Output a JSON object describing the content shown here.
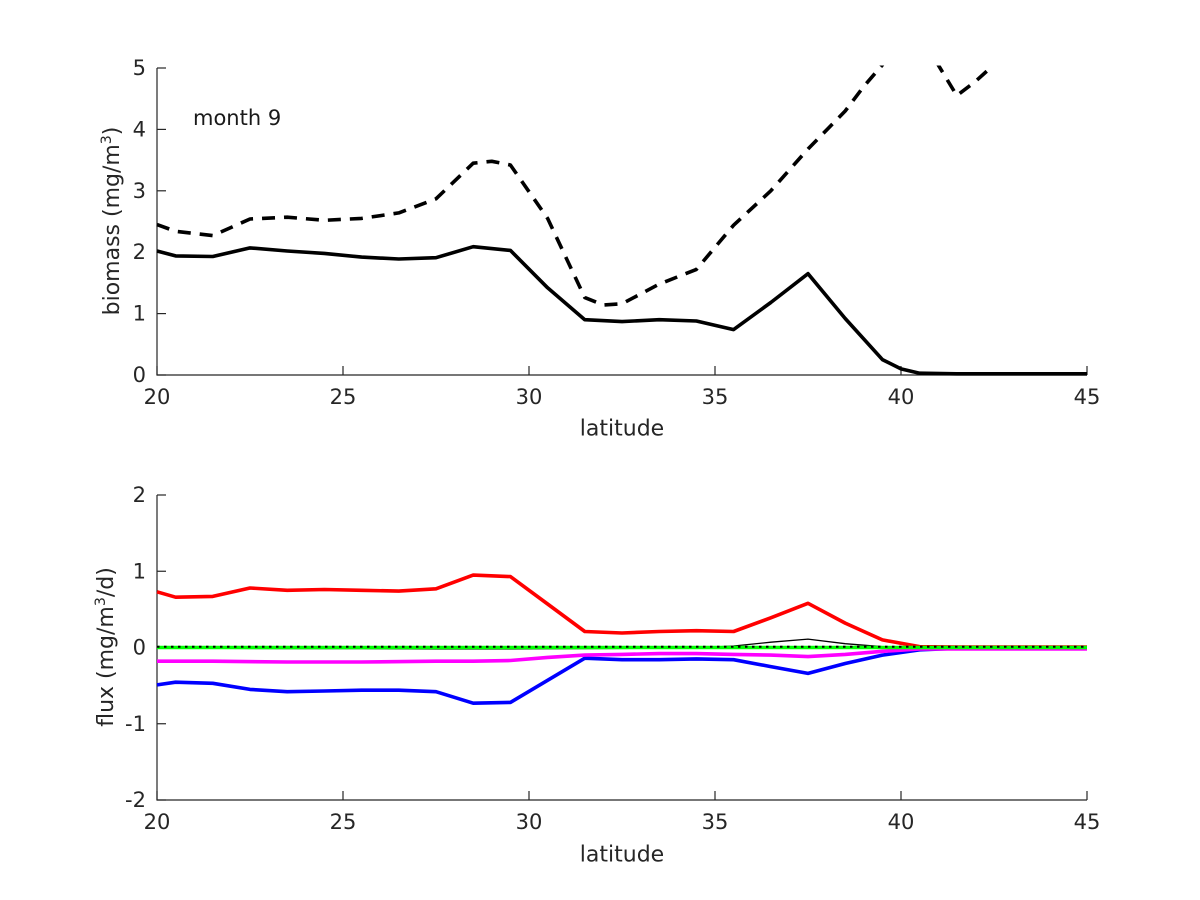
{
  "style": {
    "background": "#ffffff",
    "axis_color": "#262626",
    "tick_label_color": "#262626",
    "tick_font_size": 21
  },
  "chart_data": [
    {
      "type": "line",
      "title": "",
      "xlabel": "latitude",
      "ylabel": "biomass (mg/m^3)",
      "ylabel_parts": {
        "prefix": "biomass (mg/m",
        "sup": "3",
        "suffix": ")"
      },
      "annotation": {
        "text": "month 9",
        "x": 21,
        "y": 4.2
      },
      "xlim": [
        20,
        45
      ],
      "ylim": [
        0,
        5
      ],
      "xticks": [
        20,
        25,
        30,
        35,
        40,
        45
      ],
      "yticks": [
        0,
        1,
        2,
        3,
        4,
        5
      ],
      "grid": false,
      "legend": "none",
      "series": [
        {
          "name": "solid-black-biomass",
          "color": "#000000",
          "width": 3.6,
          "dash": null,
          "x": [
            20,
            20.5,
            21.5,
            22.5,
            23.5,
            24.5,
            25.5,
            26.5,
            27.5,
            28.5,
            29.5,
            30.5,
            31.5,
            32.5,
            33.5,
            34.5,
            35.5,
            36.5,
            37.5,
            38.5,
            39.5,
            40,
            40.5,
            41.5,
            42.5,
            43.5,
            44.5,
            45
          ],
          "y": [
            2.02,
            1.94,
            1.93,
            2.07,
            2.02,
            1.98,
            1.92,
            1.89,
            1.91,
            2.09,
            2.03,
            1.42,
            0.9,
            0.87,
            0.9,
            0.88,
            0.74,
            1.18,
            1.65,
            0.92,
            0.25,
            0.1,
            0.03,
            0.02,
            0.02,
            0.02,
            0.02,
            0.02
          ]
        },
        {
          "name": "dashed-black-biomass",
          "color": "#000000",
          "width": 3.6,
          "dash": "13 9",
          "x": [
            20,
            20.5,
            21.5,
            22.5,
            23.5,
            24.5,
            25.5,
            26.5,
            27.5,
            28.5,
            29,
            29.5,
            30.5,
            31.5,
            32,
            32.5,
            33.5,
            34.5,
            35.5,
            36.5,
            37.5,
            38.5,
            39,
            39.5,
            40,
            40.5,
            41,
            41.5,
            42,
            42.4,
            42.8
          ],
          "y": [
            2.45,
            2.34,
            2.27,
            2.54,
            2.57,
            2.52,
            2.55,
            2.64,
            2.87,
            3.45,
            3.48,
            3.42,
            2.55,
            1.26,
            1.14,
            1.16,
            1.48,
            1.72,
            2.44,
            3.0,
            3.68,
            4.3,
            4.7,
            5.05,
            5.45,
            5.6,
            5.05,
            4.55,
            4.78,
            5.0,
            5.5
          ]
        }
      ]
    },
    {
      "type": "line",
      "title": "",
      "xlabel": "latitude",
      "ylabel": "flux (mg/m^3/d)",
      "ylabel_parts": {
        "prefix": "flux (mg/m",
        "sup": "3",
        "suffix": "/d)"
      },
      "xlim": [
        20,
        45
      ],
      "ylim": [
        -2,
        2
      ],
      "xticks": [
        20,
        25,
        30,
        35,
        40,
        45
      ],
      "yticks": [
        -2,
        -1,
        0,
        1,
        2
      ],
      "grid": false,
      "legend": "none",
      "series": [
        {
          "name": "red-flux",
          "color": "#ff0000",
          "width": 3.6,
          "dash": null,
          "x": [
            20,
            20.5,
            21.5,
            22.5,
            23.5,
            24.5,
            25.5,
            26.5,
            27.5,
            28.5,
            29.5,
            30.5,
            31.5,
            32.5,
            33.5,
            34.5,
            35.5,
            36.5,
            37.5,
            38.5,
            39.5,
            40.5,
            41.5,
            45
          ],
          "y": [
            0.73,
            0.66,
            0.67,
            0.78,
            0.75,
            0.76,
            0.75,
            0.74,
            0.77,
            0.95,
            0.93,
            0.57,
            0.21,
            0.19,
            0.21,
            0.22,
            0.21,
            0.39,
            0.58,
            0.32,
            0.1,
            0.01,
            0.005,
            0.005
          ]
        },
        {
          "name": "blue-flux",
          "color": "#0000ff",
          "width": 3.6,
          "dash": null,
          "x": [
            20,
            20.5,
            21.5,
            22.5,
            23.5,
            24.5,
            25.5,
            26.5,
            27.5,
            28.5,
            29.5,
            30.5,
            31.5,
            32.5,
            33.5,
            34.5,
            35.5,
            36.5,
            37.5,
            38.5,
            39.5,
            40.5,
            41.5,
            45
          ],
          "y": [
            -0.49,
            -0.455,
            -0.47,
            -0.55,
            -0.58,
            -0.57,
            -0.56,
            -0.56,
            -0.58,
            -0.73,
            -0.72,
            -0.43,
            -0.14,
            -0.16,
            -0.16,
            -0.15,
            -0.16,
            -0.25,
            -0.34,
            -0.21,
            -0.1,
            -0.03,
            -0.01,
            -0.01
          ]
        },
        {
          "name": "magenta-flux",
          "color": "#ff00ff",
          "width": 3.6,
          "dash": null,
          "x": [
            20,
            21.5,
            23.5,
            25.5,
            27.5,
            28.5,
            29.5,
            30.5,
            31.5,
            32.5,
            33.5,
            34.5,
            35.5,
            36.5,
            37.5,
            38.5,
            39.5,
            40.5,
            41.5,
            45
          ],
          "y": [
            -0.18,
            -0.18,
            -0.19,
            -0.19,
            -0.18,
            -0.18,
            -0.17,
            -0.13,
            -0.1,
            -0.09,
            -0.08,
            -0.08,
            -0.09,
            -0.1,
            -0.12,
            -0.09,
            -0.05,
            -0.02,
            -0.02,
            -0.02
          ]
        },
        {
          "name": "thin-black-flux",
          "color": "#000000",
          "width": 1.3,
          "dash": null,
          "x": [
            20,
            21,
            22,
            23.5,
            25.5,
            27.5,
            29.5,
            31.5,
            33.5,
            34.5,
            35.5,
            36.5,
            37.5,
            38.5,
            39.5,
            40.5,
            45
          ],
          "y": [
            0.005,
            0.0,
            -0.01,
            -0.015,
            -0.015,
            -0.02,
            -0.02,
            -0.015,
            -0.01,
            -0.005,
            0.02,
            0.07,
            0.11,
            0.05,
            0.01,
            -0.005,
            -0.005
          ]
        },
        {
          "name": "green-zero-flux",
          "color": "#00ff00",
          "width": 3.6,
          "dash": null,
          "x": [
            20,
            45
          ],
          "y": [
            0,
            0
          ]
        },
        {
          "name": "dotted-black-zero",
          "color": "#000000",
          "width": 2,
          "dash": "2.5 4.5",
          "x": [
            20,
            45
          ],
          "y": [
            0.01,
            0.01
          ]
        }
      ]
    }
  ]
}
